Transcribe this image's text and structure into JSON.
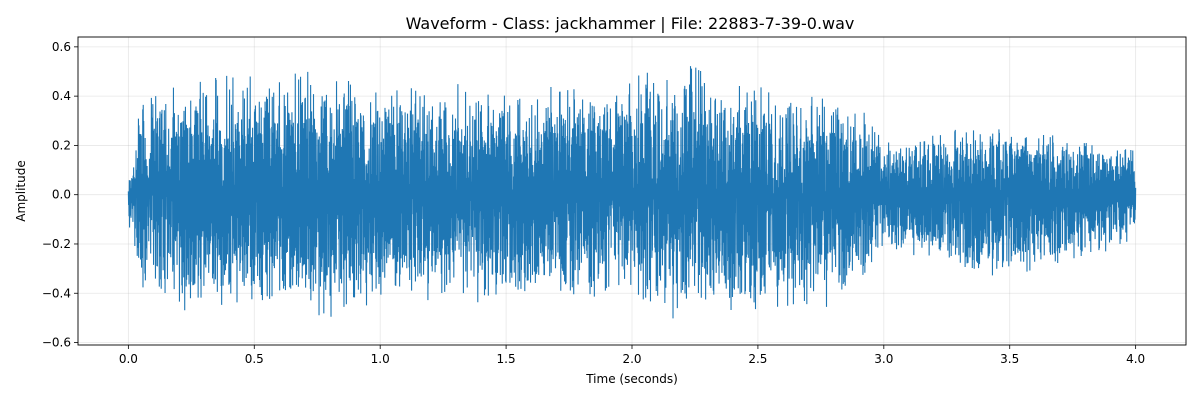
{
  "chart_data": {
    "type": "line",
    "title": "Waveform - Class: jackhammer | File: 22883-7-39-0.wav",
    "xlabel": "Time (seconds)",
    "ylabel": "Amplitude",
    "xlim": [
      -0.2,
      4.2
    ],
    "ylim": [
      -0.61,
      0.64
    ],
    "xticks": [
      0.0,
      0.5,
      1.0,
      1.5,
      2.0,
      2.5,
      3.0,
      3.5,
      4.0
    ],
    "xtick_labels": [
      "0.0",
      "0.5",
      "1.0",
      "1.5",
      "2.0",
      "2.5",
      "3.0",
      "3.5",
      "4.0"
    ],
    "yticks": [
      -0.6,
      -0.4,
      -0.2,
      0.0,
      0.2,
      0.4,
      0.6
    ],
    "ytick_labels": [
      "−0.6",
      "−0.4",
      "−0.2",
      "0.0",
      "0.2",
      "0.4",
      "0.6"
    ],
    "grid": true,
    "line_color": "#1f77b4",
    "duration": 4.0,
    "envelope": {
      "t": [
        0.0,
        0.02,
        0.05,
        0.1,
        0.3,
        0.5,
        0.7,
        0.8,
        1.0,
        1.5,
        2.0,
        2.05,
        2.5,
        2.8,
        2.9,
        3.0,
        3.5,
        3.9,
        3.98,
        4.0
      ],
      "max": [
        0.1,
        0.15,
        0.4,
        0.46,
        0.52,
        0.49,
        0.56,
        0.49,
        0.46,
        0.45,
        0.47,
        0.58,
        0.47,
        0.43,
        0.4,
        0.25,
        0.28,
        0.2,
        0.24,
        0.15
      ],
      "min": [
        -0.16,
        -0.2,
        -0.4,
        -0.48,
        -0.5,
        -0.48,
        -0.47,
        -0.55,
        -0.46,
        -0.44,
        -0.45,
        -0.52,
        -0.5,
        -0.46,
        -0.4,
        -0.25,
        -0.37,
        -0.24,
        -0.25,
        -0.13
      ]
    }
  }
}
